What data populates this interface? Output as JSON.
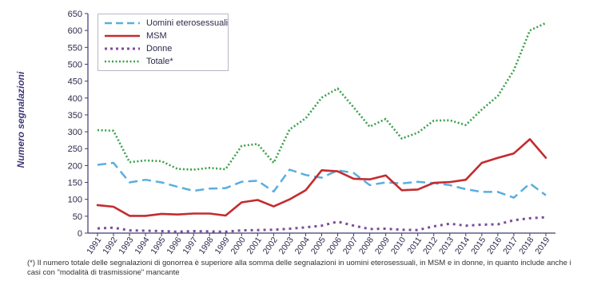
{
  "chart_data": {
    "type": "line",
    "ylabel": "Numero segnalazioni",
    "ylim": [
      0,
      650
    ],
    "yticks": [
      0,
      50,
      100,
      150,
      200,
      250,
      300,
      350,
      400,
      450,
      500,
      550,
      600,
      650
    ],
    "grid": false,
    "legend_position": "top-left",
    "x": [
      "1991",
      "1992",
      "1993",
      "1994",
      "1995",
      "1996",
      "1997",
      "1998",
      "1999",
      "2000",
      "2001",
      "2002",
      "2003",
      "2004",
      "2005",
      "2006",
      "2007",
      "2008",
      "2009",
      "2010",
      "2011",
      "2012",
      "2013",
      "2014",
      "2015",
      "2016",
      "2017",
      "2018",
      "2019"
    ],
    "series": [
      {
        "name": "Uomini eterosessuali",
        "color": "#5aaee0",
        "style": "dashed",
        "values": [
          202,
          208,
          150,
          158,
          150,
          137,
          125,
          132,
          133,
          152,
          155,
          123,
          188,
          172,
          164,
          186,
          178,
          142,
          150,
          147,
          152,
          148,
          142,
          130,
          122,
          122,
          105,
          147,
          112
        ]
      },
      {
        "name": "MSM",
        "color": "#c42b2f",
        "style": "solid",
        "values": [
          83,
          78,
          51,
          51,
          57,
          55,
          58,
          58,
          52,
          91,
          98,
          79,
          100,
          127,
          186,
          183,
          161,
          159,
          171,
          127,
          129,
          149,
          151,
          158,
          208,
          223,
          236,
          278,
          223
        ]
      },
      {
        "name": "Donne",
        "color": "#7b4e9b",
        "style": "dotted",
        "values": [
          14,
          16,
          8,
          7,
          6,
          4,
          6,
          5,
          4,
          8,
          9,
          10,
          13,
          17,
          22,
          34,
          22,
          12,
          13,
          10,
          9,
          20,
          28,
          22,
          25,
          26,
          38,
          44,
          47
        ]
      },
      {
        "name": "Totale*",
        "color": "#3aa04a",
        "style": "dotted",
        "values": [
          305,
          303,
          210,
          215,
          213,
          190,
          188,
          193,
          189,
          258,
          264,
          208,
          307,
          340,
          401,
          428,
          372,
          315,
          338,
          280,
          297,
          333,
          334,
          320,
          366,
          406,
          482,
          600,
          622
        ]
      }
    ]
  },
  "footnote": "(*) Il numero totale delle segnalazioni di gonorrea è superiore alla somma delle segnalazioni in uomini eterosessuali, in MSM e in donne, in quanto include anche i casi con \"modalità di trasmissione\" mancante"
}
